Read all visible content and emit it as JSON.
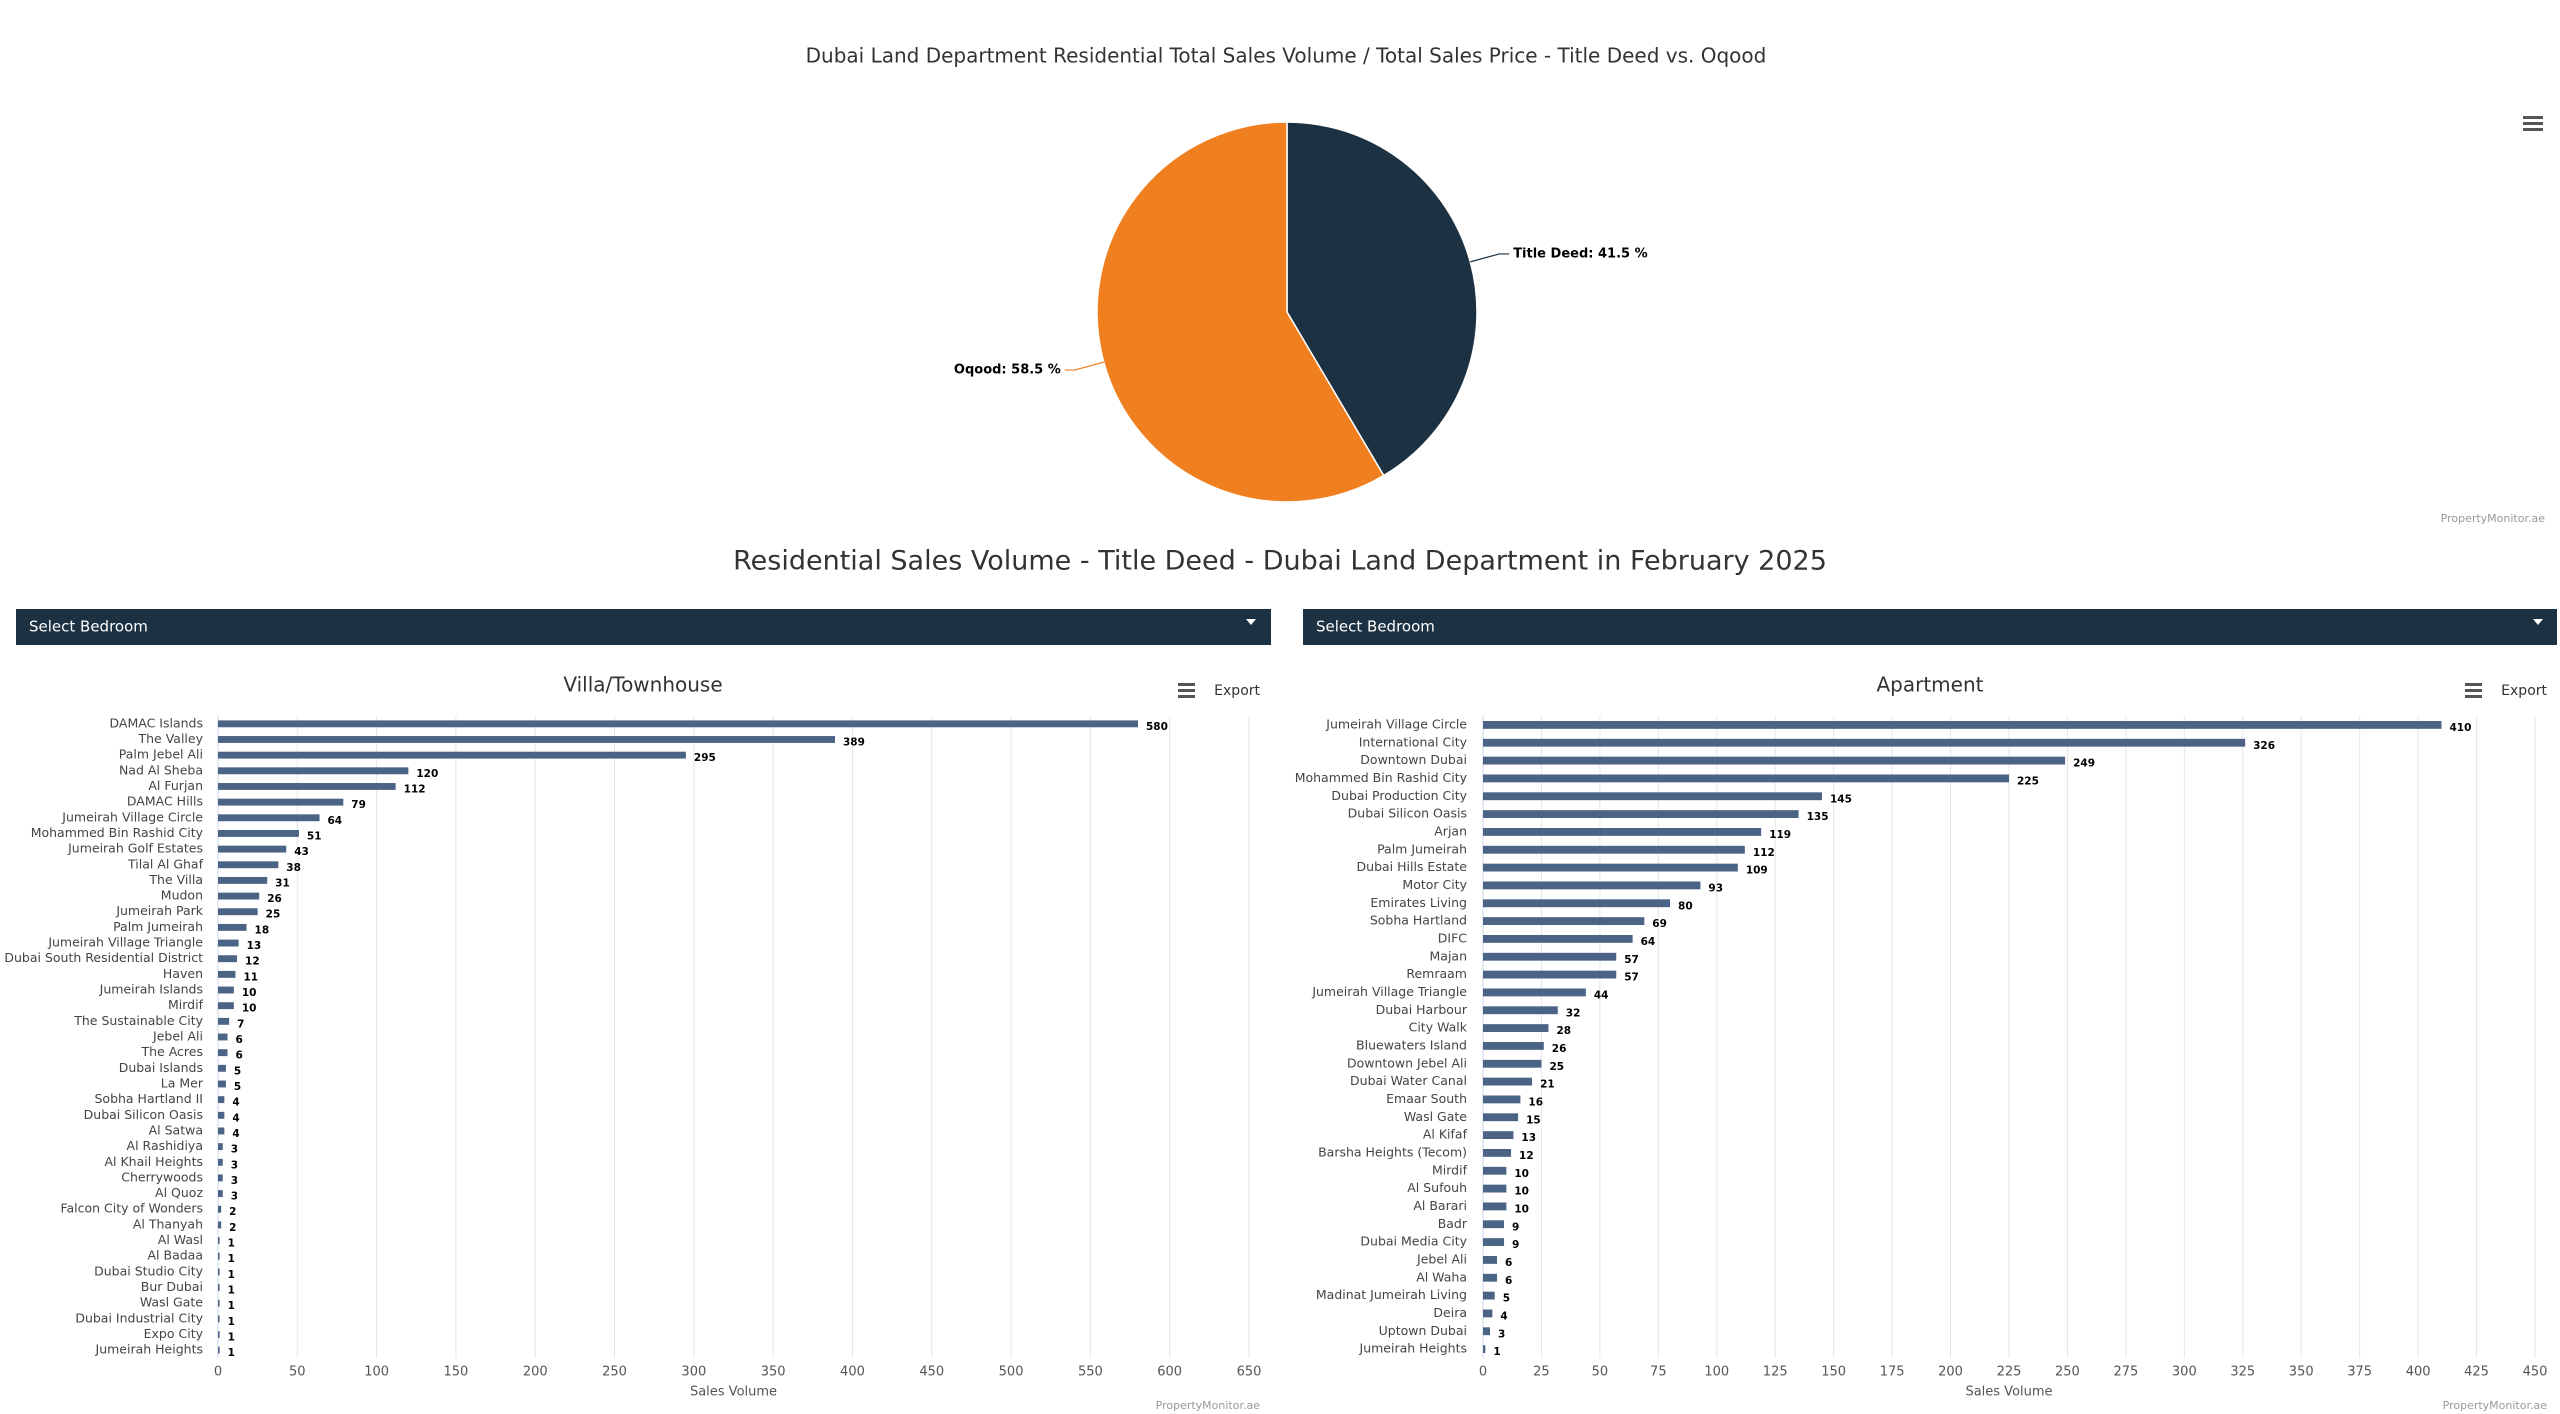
{
  "chart_data": [
    {
      "type": "pie",
      "title": "Dubai Land Department Residential Total Sales Volume / Total Sales Price - Title Deed vs. Oqood",
      "categories": [
        "Title Deed",
        "Oqood"
      ],
      "values": [
        41.5,
        58.5
      ],
      "value_labels": [
        "Title Deed: 41.5 %",
        "Oqood: 58.5 %"
      ],
      "colors": [
        "#1c3142",
        "#f07f1f"
      ],
      "credit": "PropertyMonitor.ae"
    },
    {
      "type": "bar",
      "title": "Villa/Townhouse",
      "menu_label": "Export",
      "categories": [
        "DAMAC Islands",
        "The Valley",
        "Palm Jebel Ali",
        "Nad Al Sheba",
        "Al Furjan",
        "DAMAC Hills",
        "Jumeirah Village Circle",
        "Mohammed Bin Rashid City",
        "Jumeirah Golf Estates",
        "Tilal Al Ghaf",
        "The Villa",
        "Mudon",
        "Jumeirah Park",
        "Palm Jumeirah",
        "Jumeirah Village Triangle",
        "Dubai South Residential District",
        "Haven",
        "Jumeirah Islands",
        "Mirdif",
        "The Sustainable City",
        "Jebel Ali",
        "The Acres",
        "Dubai Islands",
        "La Mer",
        "Sobha Hartland II",
        "Dubai Silicon Oasis",
        "Al Satwa",
        "Al Rashidiya",
        "Al Khail Heights",
        "Cherrywoods",
        "Al Quoz",
        "Falcon City of Wonders",
        "Al Thanyah",
        "Al Wasl",
        "Al Badaa",
        "Dubai Studio City",
        "Bur Dubai",
        "Wasl Gate",
        "Dubai Industrial City",
        "Expo City",
        "Jumeirah Heights"
      ],
      "values": [
        580,
        389,
        295,
        120,
        112,
        79,
        64,
        51,
        43,
        38,
        31,
        26,
        25,
        18,
        13,
        12,
        11,
        10,
        10,
        7,
        6,
        6,
        5,
        5,
        4,
        4,
        4,
        3,
        3,
        3,
        3,
        2,
        2,
        1,
        1,
        1,
        1,
        1,
        1,
        1,
        1
      ],
      "color": "#4b6385",
      "xlim": [
        0,
        650
      ],
      "xticks": [
        0,
        50,
        100,
        150,
        200,
        250,
        300,
        350,
        400,
        450,
        500,
        550,
        600,
        650
      ],
      "xlabel": "Sales Volume",
      "grid": true,
      "credit": "PropertyMonitor.ae"
    },
    {
      "type": "bar",
      "title": "Apartment",
      "menu_label": "Export",
      "categories": [
        "Jumeirah Village Circle",
        "International City",
        "Downtown Dubai",
        "Mohammed Bin Rashid City",
        "Dubai Production City",
        "Dubai Silicon Oasis",
        "Arjan",
        "Palm Jumeirah",
        "Dubai Hills Estate",
        "Motor City",
        "Emirates Living",
        "Sobha Hartland",
        "DIFC",
        "Majan",
        "Remraam",
        "Jumeirah Village Triangle",
        "Dubai Harbour",
        "City Walk",
        "Bluewaters Island",
        "Downtown Jebel Ali",
        "Dubai Water Canal",
        "Emaar South",
        "Wasl Gate",
        "Al Kifaf",
        "Barsha Heights (Tecom)",
        "Mirdif",
        "Al Sufouh",
        "Al Barari",
        "Badr",
        "Dubai Media City",
        "Jebel Ali",
        "Al Waha",
        "Madinat Jumeirah Living",
        "Deira",
        "Uptown Dubai",
        "Jumeirah Heights"
      ],
      "values": [
        410,
        326,
        249,
        225,
        145,
        135,
        119,
        112,
        109,
        93,
        80,
        69,
        64,
        57,
        57,
        44,
        32,
        28,
        26,
        25,
        21,
        16,
        15,
        13,
        12,
        10,
        10,
        10,
        9,
        9,
        6,
        6,
        5,
        4,
        3,
        1
      ],
      "color": "#4b6385",
      "xlim": [
        0,
        450
      ],
      "xticks": [
        0,
        25,
        50,
        75,
        100,
        125,
        150,
        175,
        200,
        225,
        250,
        275,
        300,
        325,
        350,
        375,
        400,
        425,
        450
      ],
      "xlabel": "Sales Volume",
      "grid": true,
      "credit": "PropertyMonitor.ae"
    }
  ],
  "heading": "Residential Sales Volume - Title Deed - Dubai Land Department in February 2025",
  "dropdowns": [
    "Select Bedroom",
    "Select Bedroom"
  ]
}
